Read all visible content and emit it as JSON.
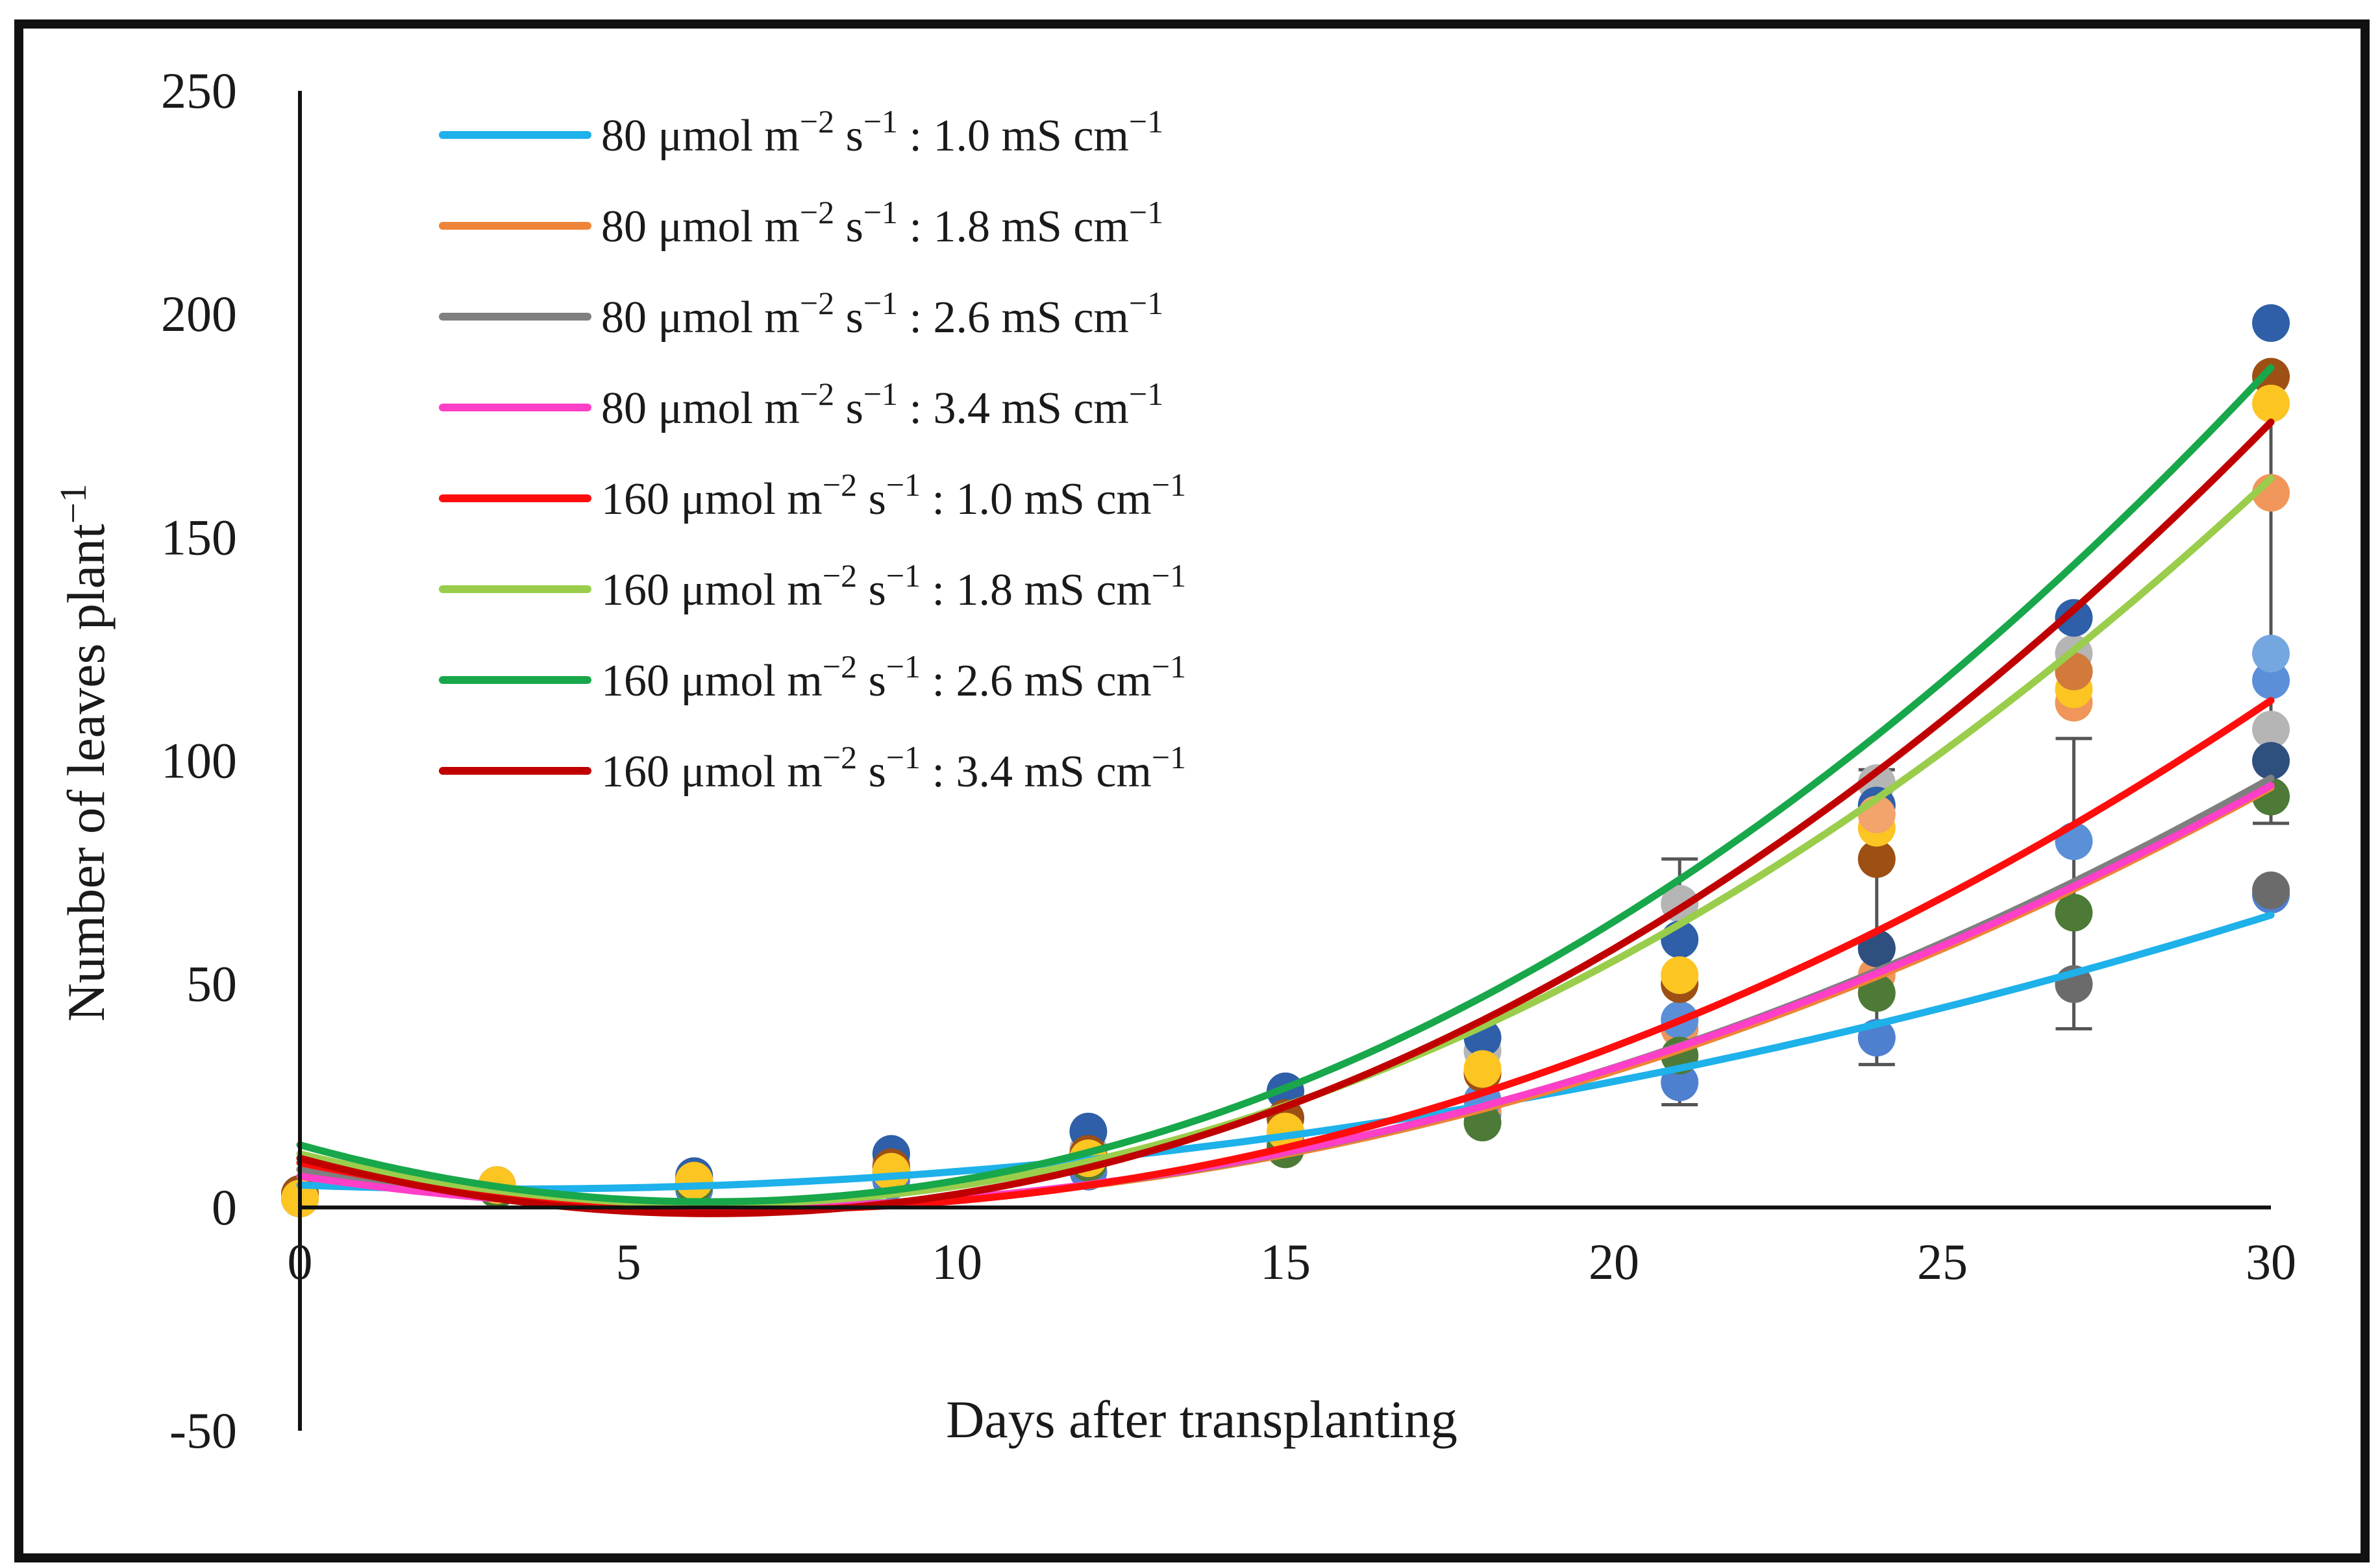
{
  "chart_data": {
    "type": "line",
    "title": "",
    "xlabel": "Days after transplanting",
    "ylabel_base": "Number of leaves plant",
    "ylabel_sup": "−1",
    "xlim": [
      0,
      30
    ],
    "ylim": [
      -50,
      250
    ],
    "xticks": [
      0,
      5,
      10,
      15,
      20,
      25,
      30
    ],
    "yticks": [
      -50,
      0,
      50,
      100,
      150,
      200,
      250
    ],
    "xtick_labels": [
      "0",
      "5",
      "10",
      "15",
      "20",
      "25",
      "30"
    ],
    "ytick_labels": [
      "-50",
      "0",
      "50",
      "100",
      "150",
      "200",
      "250"
    ],
    "grid": false,
    "legend_position": "top-left",
    "sample_days": [
      0,
      3,
      6,
      9,
      12,
      15,
      18,
      21,
      24,
      27,
      30
    ],
    "series": [
      {
        "name": "80 μmol m−2 s−1 : 1.0 mS cm−1",
        "label": {
          "p1": "80 μmol m",
          "s1": "−2",
          "p2": " s",
          "s2": "−1",
          "p3": " : 1.0 mS cm",
          "s3": "−1"
        },
        "line_color": "#1eb1ea",
        "marker_color": "#4f7fcf",
        "fit": [
          5.0,
          -0.55,
          0.0855
        ],
        "points": [
          2,
          4,
          4,
          6,
          8,
          14,
          21,
          28,
          38,
          50,
          70
        ]
      },
      {
        "name": "80 μmol m−2 s−1 : 1.8 mS cm−1",
        "label": {
          "p1": "80 μmol m",
          "s1": "−2",
          "p2": " s",
          "s2": "−1",
          "p3": " : 1.8 mS cm",
          "s3": "−1"
        },
        "line_color": "#ee8437",
        "marker_color": "#f0965a",
        "fit": [
          8.5,
          -2.4,
          0.175
        ],
        "points": [
          3,
          4,
          6,
          9,
          12,
          14,
          22,
          40,
          52,
          113,
          160
        ]
      },
      {
        "name": "80 μmol m−2 s−1 : 2.6 mS cm−1",
        "label": {
          "p1": "80 μmol m",
          "s1": "−2",
          "p2": " s",
          "s2": "−1",
          "p3": " : 2.6 mS cm",
          "s3": "−1"
        },
        "line_color": "#7f7f7f",
        "marker_color": "#b5b5b5",
        "fit": [
          8.5,
          -2.42,
          0.178
        ],
        "points": [
          3,
          5,
          7,
          10,
          13,
          20,
          35,
          68,
          95,
          124,
          107
        ]
      },
      {
        "name": "80 μmol m−2 s−1 : 3.4 mS cm−1",
        "label": {
          "p1": "80 μmol m",
          "s1": "−2",
          "p2": " s",
          "s2": "−1",
          "p3": " : 3.4 mS cm",
          "s3": "−1"
        },
        "line_color": "#ff3fc7",
        "marker_color": "#5b8fd8",
        "fit": [
          7.0,
          -2.2,
          0.1705
        ],
        "points": [
          2,
          4,
          6,
          8,
          11,
          15,
          24,
          42,
          58,
          82,
          118
        ]
      },
      {
        "name": "160 μmol m−2 s−1 : 1.0 mS cm−1",
        "label": {
          "p1": "160 μmol m",
          "s1": "−2",
          "p2": " s",
          "s2": "−1",
          "p3": " : 1.0 mS cm",
          "s3": "−1"
        },
        "line_color": "#ff0d0d",
        "marker_color": "#2e5fa8",
        "fit": [
          10.0,
          -3.0,
          0.215
        ],
        "points": [
          3,
          5,
          7,
          12,
          17,
          26,
          38,
          60,
          90,
          132,
          198
        ]
      },
      {
        "name": "160 μmol m−2 s−1 : 1.8 mS cm−1",
        "label": {
          "p1": "160 μmol m",
          "s1": "−2",
          "p2": " s",
          "s2": "−1",
          "p3": " : 1.8 mS cm",
          "s3": "−1"
        },
        "line_color": "#9acd4b",
        "marker_color": "#4d7a36",
        "fit": [
          12.0,
          -3.6,
          0.288
        ],
        "points": [
          2,
          4,
          5,
          8,
          10,
          13,
          19,
          34,
          48,
          66,
          92
        ]
      },
      {
        "name": "160 μmol m−2 s−1 : 2.6 mS cm−1",
        "label": {
          "p1": "160 μmol m",
          "s1": "−2",
          "p2": " s",
          "s2": "−1",
          "p3": " : 2.6 mS cm",
          "s3": "−1"
        },
        "line_color": "#18a74a",
        "marker_color": "#9e4f14",
        "fit": [
          14.0,
          -4.1,
          0.33
        ],
        "points": [
          3,
          5,
          6,
          9,
          12,
          20,
          30,
          50,
          78,
          120,
          186
        ]
      },
      {
        "name": "160 μmol m−2 s−1 : 3.4 mS cm−1",
        "label": {
          "p1": "160 μmol m",
          "s1": "−2",
          "p2": " s",
          "s2": "−1",
          "p3": " : 3.4 mS cm",
          "s3": "−1"
        },
        "line_color": "#c00000",
        "marker_color": "#fcc522",
        "fit": [
          11.0,
          -3.95,
          0.3148
        ],
        "points": [
          2,
          5,
          6,
          8,
          11,
          17,
          31,
          52,
          85,
          116,
          180
        ]
      }
    ],
    "extra_points": [
      {
        "color": "#6b6b6b",
        "x": 30,
        "y": 71
      },
      {
        "color": "#6b6b6b",
        "x": 27,
        "y": 50
      },
      {
        "color": "#2f4f7f",
        "x": 30,
        "y": 100
      },
      {
        "color": "#2f4f7f",
        "x": 24,
        "y": 58
      },
      {
        "color": "#74a6e0",
        "x": 30,
        "y": 124
      },
      {
        "color": "#d27a3c",
        "x": 27,
        "y": 120
      },
      {
        "color": "#f3a36c",
        "x": 24,
        "y": 88
      }
    ],
    "error_bars": [
      {
        "x": 21,
        "low": 23,
        "high": 78
      },
      {
        "x": 24,
        "low": 32,
        "high": 98
      },
      {
        "x": 27,
        "low": 40,
        "high": 105
      },
      {
        "x": 30,
        "low": 86,
        "high": 180
      }
    ]
  }
}
